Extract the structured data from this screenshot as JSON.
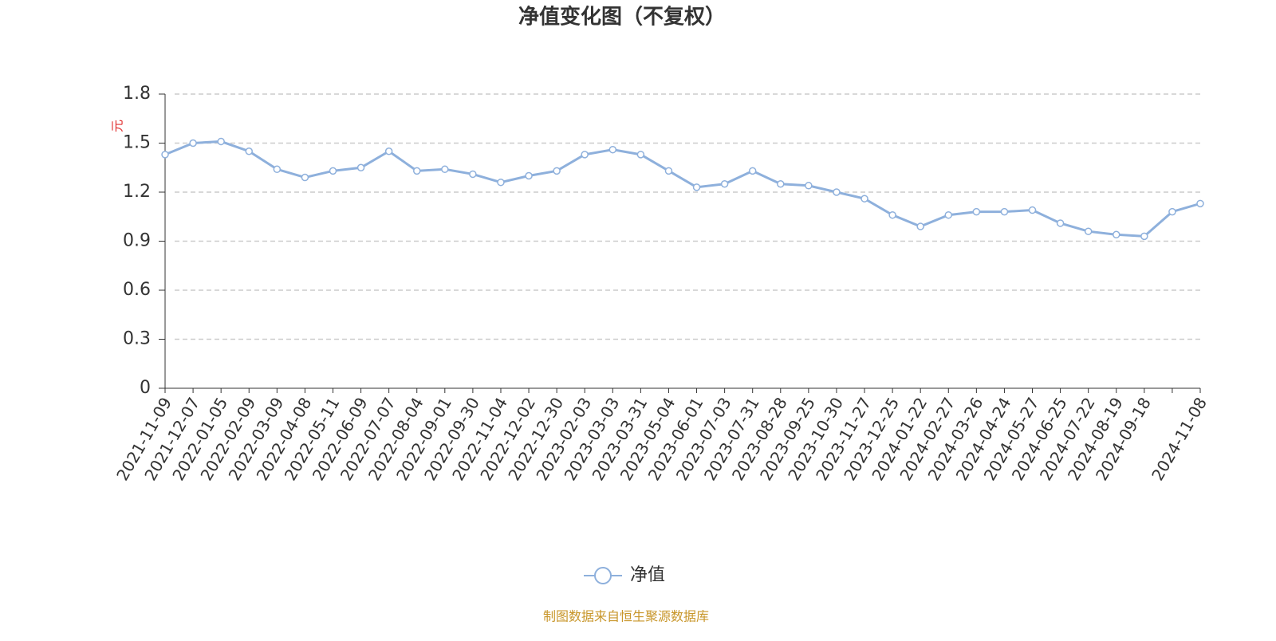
{
  "chart_data": {
    "type": "line",
    "title": "净值变化图（不复权）",
    "y_label": "元",
    "categories": [
      "2021-11-09",
      "2021-12-07",
      "2022-01-05",
      "2022-02-09",
      "2022-03-09",
      "2022-04-08",
      "2022-05-11",
      "2022-06-09",
      "2022-07-07",
      "2022-08-04",
      "2022-09-01",
      "2022-09-30",
      "2022-11-04",
      "2022-12-02",
      "2022-12-30",
      "2023-02-03",
      "2023-03-03",
      "2023-03-31",
      "2023-05-04",
      "2023-06-01",
      "2023-07-03",
      "2023-07-31",
      "2023-08-28",
      "2023-09-25",
      "2023-10-30",
      "2023-11-27",
      "2023-12-25",
      "2024-01-22",
      "2024-02-27",
      "2024-03-26",
      "2024-04-24",
      "2024-05-27",
      "2024-06-25",
      "2024-07-22",
      "2024-08-19",
      "2024-09-18",
      null,
      "2024-11-08"
    ],
    "series": [
      {
        "name": "净值",
        "color": "#8eb0dc",
        "values": [
          1.43,
          1.5,
          1.51,
          1.45,
          1.34,
          1.29,
          1.33,
          1.35,
          1.45,
          1.33,
          1.34,
          1.31,
          1.26,
          1.3,
          1.33,
          1.43,
          1.46,
          1.43,
          1.33,
          1.23,
          1.25,
          1.33,
          1.25,
          1.24,
          1.2,
          1.16,
          1.06,
          0.99,
          1.06,
          1.08,
          1.08,
          1.09,
          1.01,
          0.96,
          0.94,
          0.93,
          1.08,
          1.13
        ]
      }
    ],
    "ylim": [
      0,
      1.8
    ],
    "yticks": [
      0,
      0.3,
      0.6,
      0.9,
      1.2,
      1.5,
      1.8
    ],
    "grid": true,
    "footer": "制图数据来自恒生聚源数据库"
  }
}
